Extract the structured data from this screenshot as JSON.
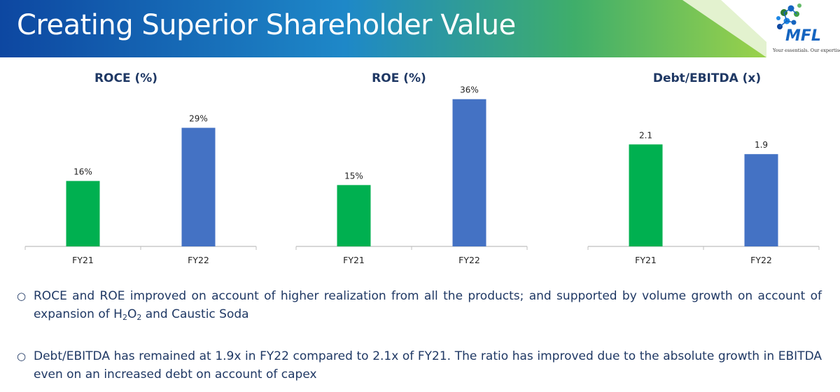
{
  "header": {
    "title": "Creating Superior Shareholder Value",
    "logo_text": "MFL",
    "logo_tagline": "Your essentials. Our expertise."
  },
  "colors": {
    "fy21_bar": "#00b050",
    "fy22_bar": "#4472c4",
    "banner_blue": "#1565c0",
    "banner_green": "#8dc63f",
    "text_navy": "#1f3864"
  },
  "chart_data": [
    {
      "type": "bar",
      "title": "ROCE (%)",
      "categories": [
        "FY21",
        "FY22"
      ],
      "values": [
        16,
        29
      ],
      "labels": [
        "16%",
        "29%"
      ],
      "ylim": [
        0,
        38
      ],
      "grid": false,
      "colors": [
        "#00b050",
        "#4472c4"
      ]
    },
    {
      "type": "bar",
      "title": "ROE (%)",
      "categories": [
        "FY21",
        "FY22"
      ],
      "values": [
        15,
        36
      ],
      "labels": [
        "15%",
        "36%"
      ],
      "ylim": [
        0,
        38
      ],
      "grid": false,
      "colors": [
        "#00b050",
        "#4472c4"
      ]
    },
    {
      "type": "bar",
      "title": "Debt/EBITDA (x)",
      "categories": [
        "FY21",
        "FY22"
      ],
      "values": [
        2.1,
        1.9
      ],
      "labels": [
        "2.1",
        "1.9"
      ],
      "ylim": [
        0,
        3.2
      ],
      "grid": false,
      "colors": [
        "#00b050",
        "#4472c4"
      ]
    }
  ],
  "bullets": [
    {
      "mark": "○",
      "pre": "ROCE and ROE improved on account of higher realization from all the products; and supported by volume growth on account of expansion of H",
      "sub1": "2",
      "mid": "O",
      "sub2": "2",
      "post": " and Caustic Soda"
    },
    {
      "mark": "○",
      "text": "Debt/EBITDA has remained at 1.9x in FY22 compared to 2.1x of FY21. The ratio has improved due to the absolute growth in EBITDA even on an increased debt on account of capex"
    }
  ]
}
